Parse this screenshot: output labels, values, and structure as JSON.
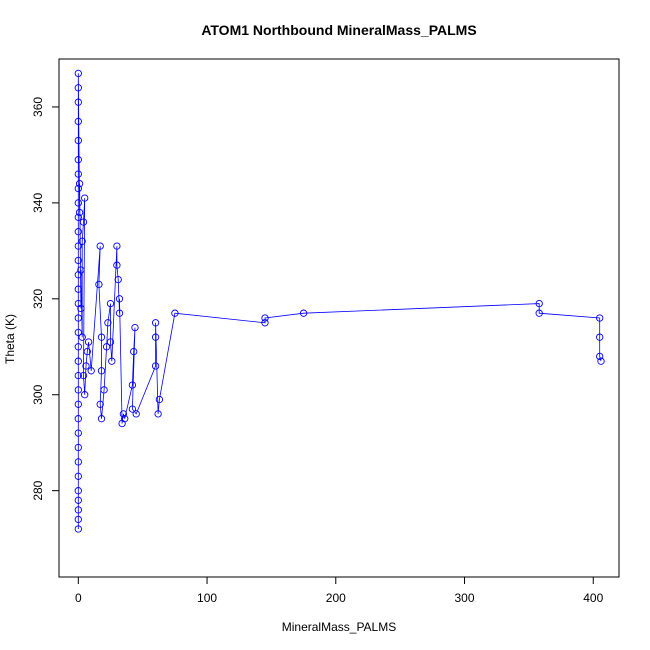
{
  "chart_data": {
    "type": "scatter",
    "title": "ATOM1 Northbound MineralMass_PALMS",
    "xlabel": "MineralMass_PALMS",
    "ylabel": "Theta (K)",
    "xlim": [
      -15,
      420
    ],
    "ylim": [
      262,
      370
    ],
    "xticks": [
      0,
      100,
      200,
      300,
      400
    ],
    "yticks": [
      280,
      300,
      320,
      340,
      360
    ],
    "color": "#0000ff",
    "marker": "open-circle",
    "connect_points": true,
    "series": [
      {
        "points": [
          [
            0,
            272
          ],
          [
            0,
            274
          ],
          [
            0,
            276
          ],
          [
            0,
            278
          ],
          [
            0,
            280
          ],
          [
            0,
            283
          ],
          [
            0,
            286
          ],
          [
            0,
            289
          ],
          [
            0,
            292
          ],
          [
            0,
            295
          ],
          [
            0,
            298
          ],
          [
            0,
            301
          ],
          [
            0,
            304
          ],
          [
            0,
            307
          ],
          [
            0,
            310
          ],
          [
            0,
            313
          ],
          [
            0,
            316
          ],
          [
            0,
            319
          ],
          [
            0,
            322
          ],
          [
            0,
            325
          ],
          [
            0,
            328
          ],
          [
            0,
            331
          ],
          [
            0,
            334
          ],
          [
            0,
            337
          ],
          [
            0,
            340
          ],
          [
            0,
            343
          ],
          [
            0,
            346
          ],
          [
            0,
            349
          ],
          [
            0,
            353
          ],
          [
            0,
            357
          ],
          [
            0,
            361
          ],
          [
            0,
            364
          ],
          [
            0,
            367
          ],
          [
            1,
            338
          ],
          [
            1,
            344
          ],
          [
            2,
            318
          ],
          [
            2,
            326
          ],
          [
            3,
            312
          ],
          [
            3,
            332
          ],
          [
            4,
            336
          ],
          [
            5,
            341
          ],
          [
            4,
            304
          ],
          [
            5,
            300
          ],
          [
            6,
            306
          ],
          [
            7,
            309
          ],
          [
            8,
            311
          ],
          [
            10,
            305
          ],
          [
            17,
            331
          ],
          [
            16,
            323
          ],
          [
            18,
            312
          ],
          [
            18,
            305
          ],
          [
            17,
            298
          ],
          [
            18,
            295
          ],
          [
            20,
            301
          ],
          [
            22,
            310
          ],
          [
            23,
            315
          ],
          [
            25,
            319
          ],
          [
            25,
            311
          ],
          [
            26,
            307
          ],
          [
            30,
            331
          ],
          [
            30,
            327
          ],
          [
            31,
            324
          ],
          [
            32,
            317
          ],
          [
            32,
            320
          ],
          [
            34,
            294
          ],
          [
            35,
            296
          ],
          [
            36,
            295
          ],
          [
            42,
            302
          ],
          [
            43,
            309
          ],
          [
            44,
            314
          ],
          [
            42,
            297
          ],
          [
            45,
            296
          ],
          [
            60,
            306
          ],
          [
            60,
            312
          ],
          [
            60,
            315
          ],
          [
            62,
            296
          ],
          [
            63,
            299
          ],
          [
            75,
            317
          ],
          [
            145,
            315
          ],
          [
            145,
            316
          ],
          [
            175,
            317
          ],
          [
            358,
            319
          ],
          [
            358,
            317
          ],
          [
            405,
            316
          ],
          [
            405,
            312
          ],
          [
            405,
            308
          ],
          [
            406,
            307
          ]
        ]
      }
    ]
  }
}
